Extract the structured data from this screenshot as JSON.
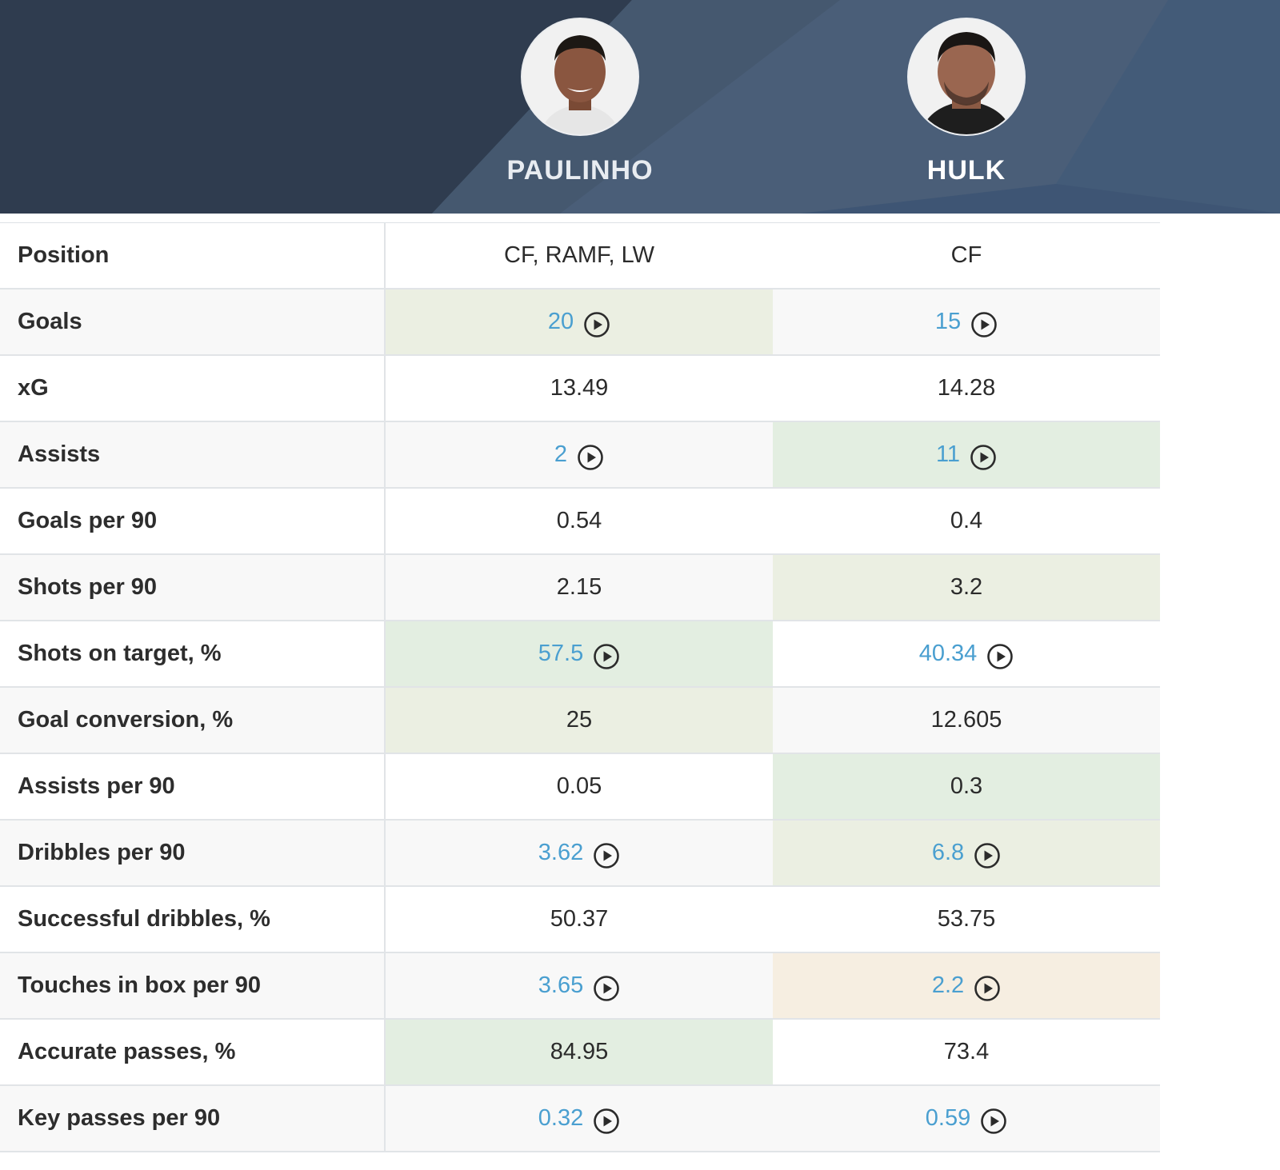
{
  "players": [
    {
      "name": "PAULINHO"
    },
    {
      "name": "HULK"
    }
  ],
  "colors": {
    "header_dark": "#2f3c4f",
    "header_mid": "#4a5e78",
    "link_blue": "#4a9fd0",
    "highlight_green": "#e3eee1",
    "highlight_olive": "#ebefe2",
    "highlight_peach": "#f6eee1"
  },
  "rows": [
    {
      "label": "Position",
      "p1": {
        "value": "CF, RAMF, LW",
        "video": false,
        "highlight": "none"
      },
      "p2": {
        "value": "CF",
        "video": false,
        "highlight": "none"
      }
    },
    {
      "label": "Goals",
      "p1": {
        "value": "20",
        "video": true,
        "highlight": "olive"
      },
      "p2": {
        "value": "15",
        "video": true,
        "highlight": "none"
      }
    },
    {
      "label": "xG",
      "p1": {
        "value": "13.49",
        "video": false,
        "highlight": "none"
      },
      "p2": {
        "value": "14.28",
        "video": false,
        "highlight": "none"
      }
    },
    {
      "label": "Assists",
      "p1": {
        "value": "2",
        "video": true,
        "highlight": "none"
      },
      "p2": {
        "value": "11",
        "video": true,
        "highlight": "green"
      }
    },
    {
      "label": "Goals per 90",
      "p1": {
        "value": "0.54",
        "video": false,
        "highlight": "none"
      },
      "p2": {
        "value": "0.4",
        "video": false,
        "highlight": "none"
      }
    },
    {
      "label": "Shots per 90",
      "p1": {
        "value": "2.15",
        "video": false,
        "highlight": "none"
      },
      "p2": {
        "value": "3.2",
        "video": false,
        "highlight": "olive"
      }
    },
    {
      "label": "Shots on target, %",
      "p1": {
        "value": "57.5",
        "video": true,
        "highlight": "green"
      },
      "p2": {
        "value": "40.34",
        "video": true,
        "highlight": "none"
      }
    },
    {
      "label": "Goal conversion, %",
      "p1": {
        "value": "25",
        "video": false,
        "highlight": "olive"
      },
      "p2": {
        "value": "12.605",
        "video": false,
        "highlight": "none"
      }
    },
    {
      "label": "Assists per 90",
      "p1": {
        "value": "0.05",
        "video": false,
        "highlight": "none"
      },
      "p2": {
        "value": "0.3",
        "video": false,
        "highlight": "green"
      }
    },
    {
      "label": "Dribbles per 90",
      "p1": {
        "value": "3.62",
        "video": true,
        "highlight": "none"
      },
      "p2": {
        "value": "6.8",
        "video": true,
        "highlight": "olive"
      }
    },
    {
      "label": "Successful dribbles, %",
      "p1": {
        "value": "50.37",
        "video": false,
        "highlight": "none"
      },
      "p2": {
        "value": "53.75",
        "video": false,
        "highlight": "none"
      }
    },
    {
      "label": "Touches in box per 90",
      "p1": {
        "value": "3.65",
        "video": true,
        "highlight": "none"
      },
      "p2": {
        "value": "2.2",
        "video": true,
        "highlight": "peach"
      }
    },
    {
      "label": "Accurate passes, %",
      "p1": {
        "value": "84.95",
        "video": false,
        "highlight": "green"
      },
      "p2": {
        "value": "73.4",
        "video": false,
        "highlight": "none"
      }
    },
    {
      "label": "Key passes per 90",
      "p1": {
        "value": "0.32",
        "video": true,
        "highlight": "none"
      },
      "p2": {
        "value": "0.59",
        "video": true,
        "highlight": "none"
      }
    }
  ]
}
